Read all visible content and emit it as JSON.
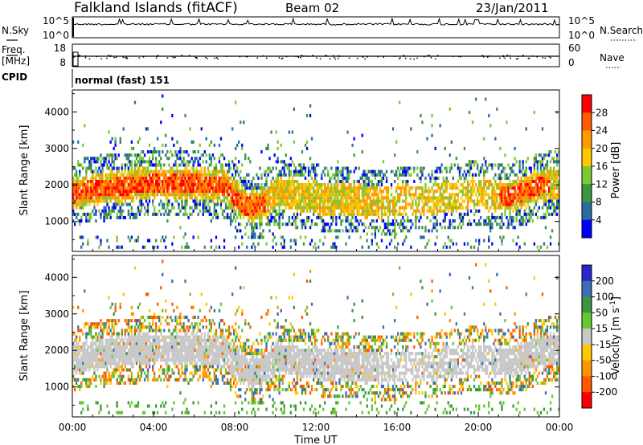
{
  "header": {
    "station": "Falkland Islands (fitACF)",
    "beam": "Beam 02",
    "date": "23/Jan/2011"
  },
  "panels": {
    "noise": {
      "left_label": "N.Sky",
      "right_label": "N.Search",
      "left_ticks": [
        "10^5",
        "10^0"
      ],
      "right_ticks": [
        "10^5",
        "10^0"
      ]
    },
    "freq": {
      "left_label_1": "Freq.",
      "left_label_2": "[MHz]",
      "right_label": "Nave",
      "left_ticks": [
        "18",
        "8"
      ],
      "right_ticks": [
        "60",
        "0"
      ]
    },
    "cpid": {
      "label": "CPID",
      "mode": "normal (fast) 151"
    }
  },
  "chart_data": [
    {
      "type": "heatmap",
      "name": "power",
      "ylabel": "Slant Range [km]",
      "yticks": [
        "4000",
        "3000",
        "2000",
        "1000"
      ],
      "ytick_values": [
        4000,
        3000,
        2000,
        1000
      ],
      "ylim": [
        180,
        4600
      ],
      "xlim": [
        0,
        24
      ],
      "colorbar": {
        "label": "Power [dB]",
        "ticks": [
          "28",
          "24",
          "20",
          "16",
          "12",
          "8",
          "4"
        ],
        "colors": [
          "#ff0000",
          "#ff5a00",
          "#ff9b00",
          "#ffc800",
          "#7fc832",
          "#3c963c",
          "#286ea0",
          "#0000ff"
        ]
      }
    },
    {
      "type": "heatmap",
      "name": "velocity",
      "ylabel": "Slant Range [km]",
      "yticks": [
        "4000",
        "3000",
        "2000",
        "1000"
      ],
      "ytick_values": [
        4000,
        3000,
        2000,
        1000
      ],
      "ylim": [
        180,
        4600
      ],
      "xlim": [
        0,
        24
      ],
      "colorbar": {
        "label": "Velocity [m s^-1]",
        "ticks": [
          "200",
          "100",
          "50",
          "15",
          "-15",
          "-50",
          "-100",
          "-200"
        ],
        "colors": [
          "#2828c8",
          "#3c6eb4",
          "#3c963c",
          "#64c832",
          "#c8c8c8",
          "#ffc800",
          "#ff9600",
          "#ff5a00",
          "#ff0000"
        ]
      }
    }
  ],
  "xaxis": {
    "label": "Time UT",
    "ticks": [
      "00:00",
      "04:00",
      "08:00",
      "12:00",
      "16:00",
      "20:00",
      "00:00"
    ],
    "tick_values": [
      0,
      4,
      8,
      12,
      16,
      20,
      24
    ]
  }
}
